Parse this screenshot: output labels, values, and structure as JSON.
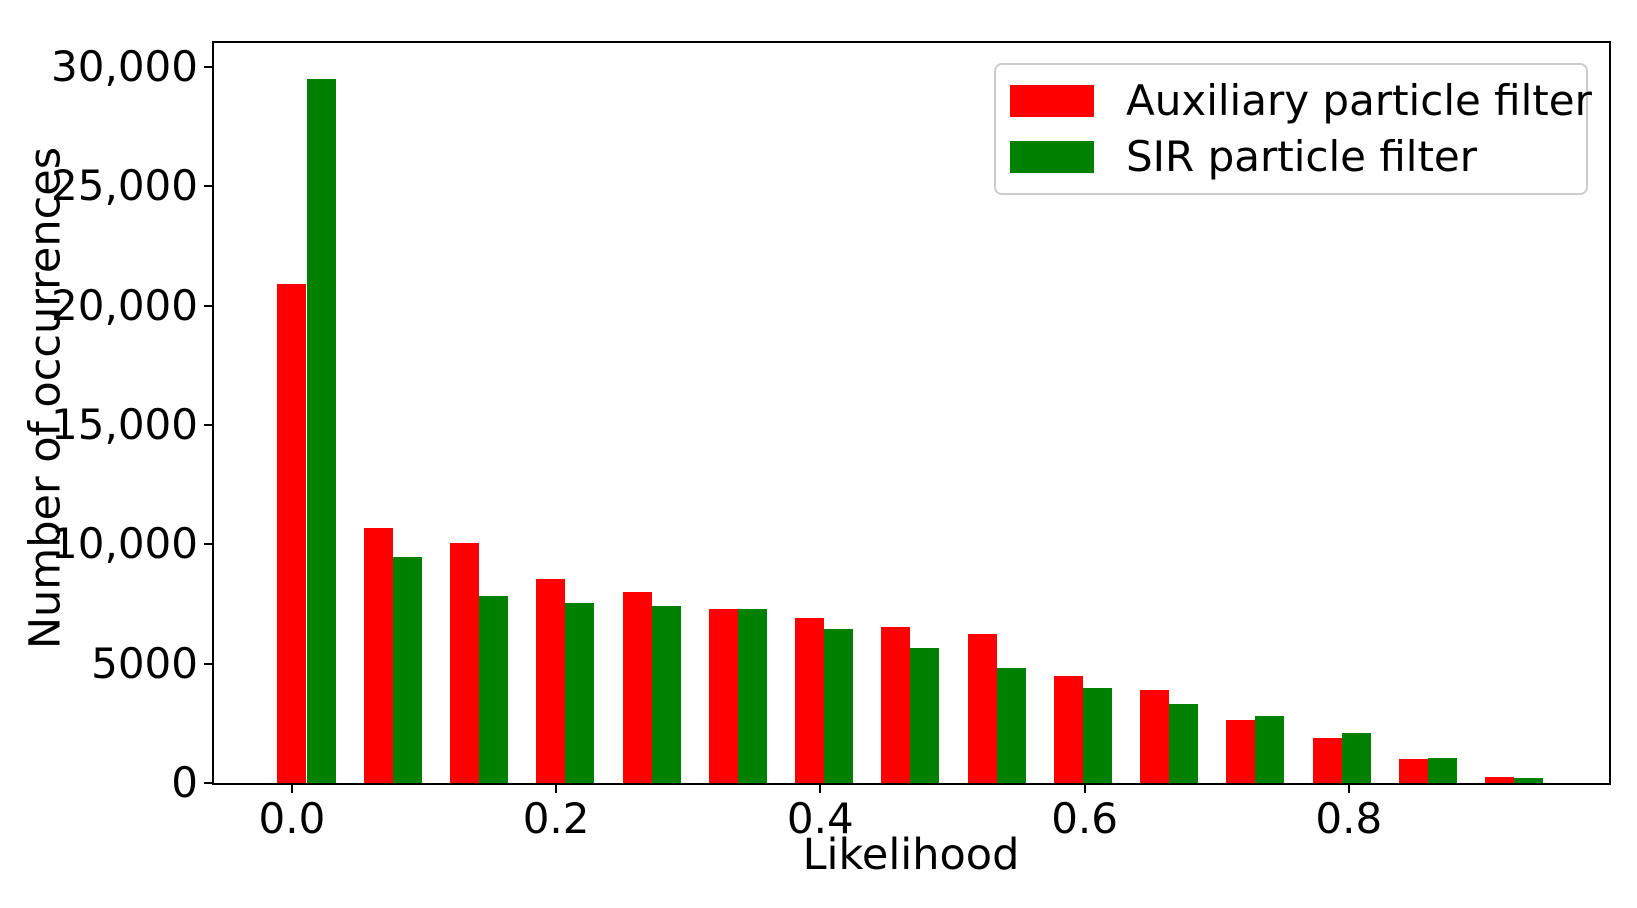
{
  "figure": {
    "background_color": "#ffffff",
    "spine_color": "#000000"
  },
  "chart_data": {
    "type": "bar",
    "subtype": "grouped-histogram",
    "title": "",
    "xlabel": "Likelihood",
    "ylabel": "Number of occurrences",
    "xlim": [
      -0.059,
      0.997
    ],
    "ylim": [
      0,
      31000
    ],
    "grid": false,
    "n_bins": 15,
    "bin_width": 0.0653,
    "bar_width": 0.022,
    "x_tick_values": [
      0.0,
      0.2,
      0.4,
      0.6,
      0.8
    ],
    "x_tick_labels": [
      "0.0",
      "0.2",
      "0.4",
      "0.6",
      "0.8"
    ],
    "y_tick_values": [
      0,
      5000,
      10000,
      15000,
      20000,
      25000,
      30000
    ],
    "y_tick_labels": [
      "0",
      "5000",
      "10,000",
      "15,000",
      "20,000",
      "25,000",
      "30,000"
    ],
    "legend_position": "upper-right",
    "legend_border_color": "#cccccc",
    "series": [
      {
        "name": "Auxiliary particle filter",
        "color": "#ff0000",
        "values": [
          20900,
          10700,
          10050,
          8550,
          8000,
          7300,
          6900,
          6550,
          6250,
          4500,
          3900,
          2650,
          1880,
          1010,
          270
        ]
      },
      {
        "name": "SIR particle filter",
        "color": "#008000",
        "values": [
          29500,
          9450,
          7850,
          7550,
          7400,
          7300,
          6450,
          5650,
          4800,
          4000,
          3300,
          2800,
          2090,
          1050,
          220
        ]
      }
    ]
  }
}
